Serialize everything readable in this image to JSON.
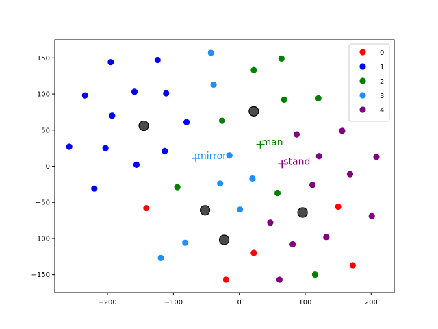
{
  "chart_data": {
    "type": "scatter",
    "title": "",
    "xlabel": "",
    "ylabel": "",
    "xlim": [
      -280,
      235
    ],
    "ylim": [
      -175,
      175
    ],
    "xticks": [
      -200,
      -100,
      0,
      100,
      200
    ],
    "yticks": [
      -150,
      -100,
      -50,
      0,
      50,
      100,
      150
    ],
    "grid": false,
    "legend": {
      "placement": "top-right"
    },
    "series": [
      {
        "name": "0",
        "color": "#ff0000",
        "points": [
          [
            -141,
            -58
          ],
          [
            -20,
            -157
          ],
          [
            22,
            -120
          ],
          [
            150,
            -56
          ],
          [
            172,
            -137
          ]
        ]
      },
      {
        "name": "1",
        "color": "#0000ff",
        "points": [
          [
            -195,
            144
          ],
          [
            -124,
            147
          ],
          [
            -234,
            98
          ],
          [
            -159,
            103
          ],
          [
            -111,
            101
          ],
          [
            -193,
            70
          ],
          [
            -80,
            61
          ],
          [
            -258,
            27
          ],
          [
            -203,
            25
          ],
          [
            -113,
            21
          ],
          [
            -156,
            2
          ],
          [
            -220,
            -31
          ]
        ]
      },
      {
        "name": "2",
        "color": "#008000",
        "points": [
          [
            64,
            149
          ],
          [
            22,
            133
          ],
          [
            68,
            92
          ],
          [
            120,
            94
          ],
          [
            -26,
            63
          ],
          [
            -94,
            -29
          ],
          [
            58,
            -37
          ],
          [
            115,
            -150
          ]
        ]
      },
      {
        "name": "3",
        "color": "#1e90ff",
        "points": [
          [
            -43,
            157
          ],
          [
            -39,
            113
          ],
          [
            -15,
            15
          ],
          [
            20,
            -17
          ],
          [
            -29,
            -24
          ],
          [
            1,
            -60
          ],
          [
            -82,
            -106
          ],
          [
            -119,
            -127
          ]
        ]
      },
      {
        "name": "4",
        "color": "#800080",
        "points": [
          [
            156,
            49
          ],
          [
            87,
            44
          ],
          [
            121,
            14
          ],
          [
            208,
            13
          ],
          [
            168,
            -11
          ],
          [
            111,
            -26
          ],
          [
            201,
            -69
          ],
          [
            47,
            -78
          ],
          [
            132,
            -98
          ],
          [
            81,
            -108
          ],
          [
            61,
            -157
          ]
        ]
      }
    ],
    "centroids": {
      "color": "#404040",
      "points": [
        [
          22,
          76
        ],
        [
          -145,
          56
        ],
        [
          -52,
          -61
        ],
        [
          96,
          -64
        ],
        [
          -23,
          -102
        ]
      ]
    },
    "words": [
      {
        "text": "man",
        "color": "#008000",
        "point": [
          32,
          30
        ]
      },
      {
        "text": "mirror",
        "color": "#1e90ff",
        "point": [
          -66,
          11
        ]
      },
      {
        "text": "stand",
        "color": "#800080",
        "point": [
          65,
          3
        ]
      }
    ]
  }
}
